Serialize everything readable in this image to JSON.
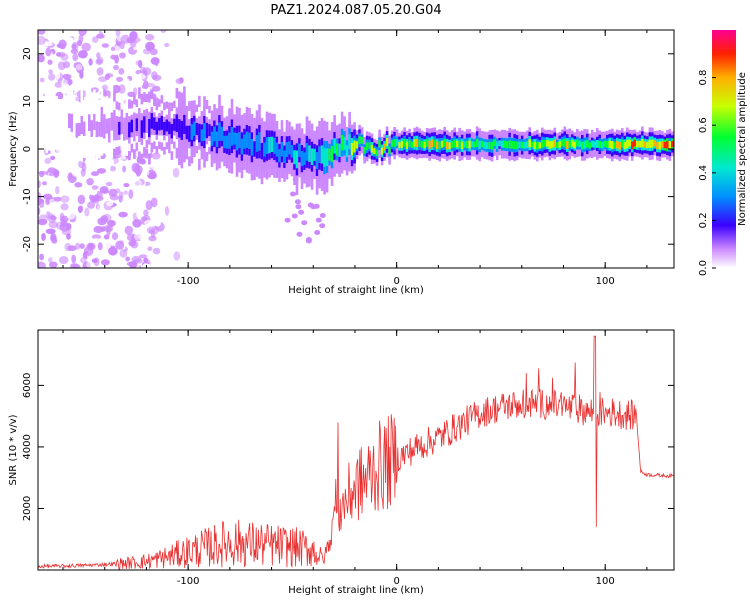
{
  "figure": {
    "title": "PAZ1.2024.087.05.20.G04"
  },
  "colors": {
    "snr_line": "#e83030",
    "axis": "#000000",
    "background": "#ffffff"
  },
  "chart_data": [
    {
      "type": "heatmap",
      "xlabel": "Height of straight line (km)",
      "ylabel": "Frequency (Hz)",
      "xlim": [
        -172,
        133
      ],
      "ylim": [
        -25,
        25
      ],
      "xticks": [
        -100,
        0,
        100
      ],
      "xtick_labels": [
        "-100",
        "0",
        "100"
      ],
      "yticks": [
        -20,
        -10,
        0,
        10,
        20
      ],
      "ytick_labels": [
        "-20",
        "-10",
        "0",
        "10",
        "20"
      ],
      "grid": false,
      "colorbar": {
        "label": "Normalized spectral amplitude",
        "range": [
          0,
          1
        ],
        "ticks": [
          0.0,
          0.2,
          0.4,
          0.6,
          0.8
        ],
        "tick_labels": [
          "0.0",
          "0.2",
          "0.4",
          "0.6",
          "0.8"
        ]
      },
      "ridge": {
        "x": [
          -172,
          -150,
          -130,
          -110,
          -100,
          -90,
          -80,
          -70,
          -60,
          -50,
          -40,
          -30,
          -20,
          -10,
          0,
          20,
          40,
          60,
          80,
          95,
          110,
          133
        ],
        "center_hz": [
          5,
          5,
          5,
          5,
          4,
          3,
          2,
          1,
          0,
          -1,
          -2,
          0,
          1,
          0,
          1,
          1,
          1,
          1,
          1,
          1,
          1,
          1
        ],
        "peak_amplitude": [
          0.05,
          0.1,
          0.2,
          0.25,
          0.3,
          0.35,
          0.38,
          0.35,
          0.4,
          0.42,
          0.45,
          0.55,
          0.7,
          0.75,
          0.7,
          0.85,
          0.6,
          0.7,
          0.8,
          0.55,
          0.9,
          0.9
        ]
      }
    },
    {
      "type": "line",
      "xlabel": "Height of straight line (km)",
      "ylabel": "SNR (10 * v/v)",
      "xlim": [
        -172,
        133
      ],
      "ylim": [
        0,
        7800
      ],
      "xticks": [
        -100,
        0,
        100
      ],
      "xtick_labels": [
        "-100",
        "0",
        "100"
      ],
      "yticks": [
        2000,
        4000,
        6000
      ],
      "ytick_labels": [
        "2000",
        "4000",
        "6000"
      ],
      "grid": false,
      "series": [
        {
          "x": [
            -172,
            -160,
            -150,
            -140,
            -130,
            -120,
            -110,
            -100,
            -90,
            -80,
            -70,
            -60,
            -50,
            -40,
            -35,
            -30,
            -25,
            -20,
            -15,
            -10,
            0,
            10,
            20,
            30,
            40,
            50,
            60,
            70,
            80,
            90,
            95,
            100,
            110,
            115,
            117,
            120,
            133
          ],
          "values": [
            120,
            130,
            150,
            180,
            220,
            280,
            420,
            600,
            750,
            900,
            850,
            800,
            750,
            650,
            300,
            1600,
            2200,
            2700,
            2900,
            3300,
            3600,
            4000,
            4300,
            4700,
            5100,
            5300,
            5400,
            5400,
            5300,
            5200,
            5100,
            5150,
            5050,
            5000,
            3200,
            3100,
            3050
          ]
        }
      ]
    }
  ]
}
